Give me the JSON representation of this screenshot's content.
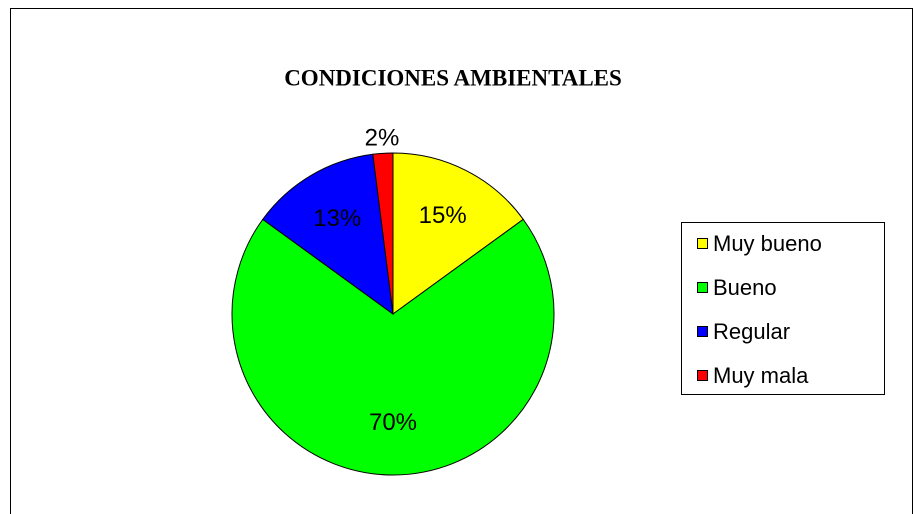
{
  "chart_data": {
    "type": "pie",
    "title": "CONDICIONES AMBIENTALES",
    "categories": [
      "Muy bueno",
      "Bueno",
      "Regular",
      "Muy mala"
    ],
    "values": [
      15,
      70,
      13,
      2
    ],
    "value_labels": [
      "15%",
      "70%",
      "13%",
      "2%"
    ],
    "colors": [
      "#ffff00",
      "#00ff00",
      "#0000ff",
      "#ff0000"
    ],
    "legend": "right"
  }
}
